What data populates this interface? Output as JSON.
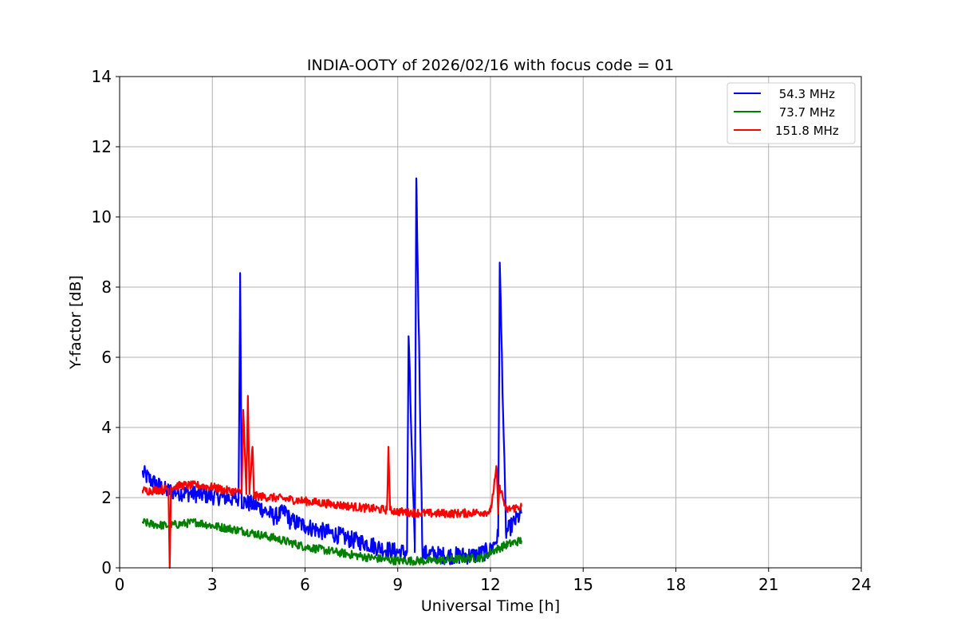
{
  "chart_data": {
    "type": "line",
    "title": "INDIA-OOTY of 2026/02/16 with focus code = 01",
    "xlabel": "Universal Time [h]",
    "ylabel": "Y-factor [dB]",
    "xlim": [
      0,
      24
    ],
    "ylim": [
      0,
      14
    ],
    "xticks": [
      0,
      3,
      6,
      9,
      12,
      15,
      18,
      21,
      24
    ],
    "yticks": [
      0,
      2,
      4,
      6,
      8,
      10,
      12,
      14
    ],
    "grid": true,
    "legend_position": "top-right",
    "series": [
      {
        "name": "54.3 MHz",
        "label": " 54.3 MHz",
        "color": "#0000ff",
        "noise": 0.25,
        "x": [
          0.75,
          1.0,
          1.5,
          2.0,
          2.5,
          3.0,
          3.5,
          3.85,
          3.9,
          3.95,
          4.5,
          5.0,
          5.4,
          5.5,
          6.0,
          6.5,
          7.0,
          7.5,
          8.0,
          8.5,
          9.0,
          9.3,
          9.35,
          9.55,
          9.6,
          9.8,
          10.0,
          10.5,
          11.0,
          11.5,
          12.0,
          12.25,
          12.3,
          12.5,
          13.0
        ],
        "y": [
          2.7,
          2.5,
          2.2,
          2.15,
          2.1,
          2.05,
          2.0,
          1.95,
          8.4,
          1.9,
          1.75,
          1.45,
          1.6,
          1.35,
          1.2,
          1.05,
          0.95,
          0.8,
          0.7,
          0.55,
          0.45,
          0.45,
          6.6,
          0.45,
          11.1,
          0.4,
          0.4,
          0.35,
          0.35,
          0.35,
          0.5,
          0.9,
          8.7,
          1.0,
          1.55
        ]
      },
      {
        "name": "73.7 MHz",
        "label": " 73.7 MHz",
        "color": "#008000",
        "noise": 0.12,
        "x": [
          0.75,
          1.0,
          1.5,
          2.0,
          2.5,
          3.0,
          4.0,
          5.0,
          6.0,
          7.0,
          8.0,
          9.0,
          10.0,
          11.0,
          11.8,
          12.0,
          12.5,
          13.0
        ],
        "y": [
          1.3,
          1.25,
          1.2,
          1.25,
          1.3,
          1.2,
          1.05,
          0.85,
          0.6,
          0.45,
          0.3,
          0.2,
          0.2,
          0.25,
          0.3,
          0.45,
          0.65,
          0.78
        ]
      },
      {
        "name": "151.8 MHz",
        "label": "151.8 MHz",
        "color": "#ff0000",
        "noise": 0.12,
        "x": [
          0.75,
          1.0,
          1.5,
          1.58,
          1.62,
          1.66,
          2.0,
          2.5,
          3.0,
          3.5,
          3.95,
          4.0,
          4.1,
          4.15,
          4.2,
          4.3,
          4.35,
          5.0,
          6.0,
          7.0,
          8.0,
          8.65,
          8.7,
          8.75,
          9.0,
          10.0,
          11.0,
          12.0,
          12.2,
          12.25,
          12.3,
          12.5,
          13.0
        ],
        "y": [
          2.2,
          2.2,
          2.25,
          2.25,
          0.0,
          2.3,
          2.35,
          2.35,
          2.3,
          2.2,
          2.15,
          4.5,
          2.1,
          4.9,
          2.1,
          3.45,
          2.05,
          2.0,
          1.9,
          1.8,
          1.7,
          1.65,
          3.45,
          1.65,
          1.6,
          1.55,
          1.55,
          1.6,
          2.85,
          1.6,
          2.35,
          1.65,
          1.75
        ]
      }
    ]
  }
}
